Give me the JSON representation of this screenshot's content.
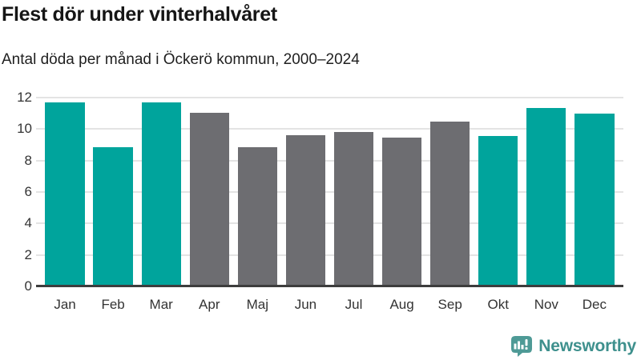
{
  "title": "Flest dör under vinterhalvåret",
  "subtitle": "Antal döda per månad i Öckerö kommun, 2000–2024",
  "chart_data": {
    "type": "bar",
    "title": "Flest dör under vinterhalvåret",
    "subtitle": "Antal döda per månad i Öckerö kommun, 2000–2024",
    "categories": [
      "Jan",
      "Feb",
      "Mar",
      "Apr",
      "Maj",
      "Jun",
      "Jul",
      "Aug",
      "Sep",
      "Okt",
      "Nov",
      "Dec"
    ],
    "values": [
      11.7,
      8.85,
      11.7,
      11.05,
      8.85,
      9.6,
      9.8,
      9.45,
      10.5,
      9.55,
      11.35,
      11.0
    ],
    "bar_colors": [
      "#00a49c",
      "#00a49c",
      "#00a49c",
      "#6d6d71",
      "#6d6d71",
      "#6d6d71",
      "#6d6d71",
      "#6d6d71",
      "#6d6d71",
      "#00a49c",
      "#00a49c",
      "#00a49c"
    ],
    "color_legend": {
      "winter_half_year": "#00a49c",
      "summer_half_year": "#6d6d71"
    },
    "xlabel": "",
    "ylabel": "",
    "ylim": [
      0,
      12
    ],
    "yticks": [
      0,
      2,
      4,
      6,
      8,
      10,
      12
    ],
    "grid": "horizontal",
    "gridline_color": "#e4e4e4",
    "axis_line_color": "#3d3d3d"
  },
  "branding": {
    "logo_text": "Newsworthy",
    "logo_color": "#3e908d",
    "logo_icon": "bar-chart-speech-bubble-icon",
    "logo_icon_color": "#4e9a96"
  }
}
